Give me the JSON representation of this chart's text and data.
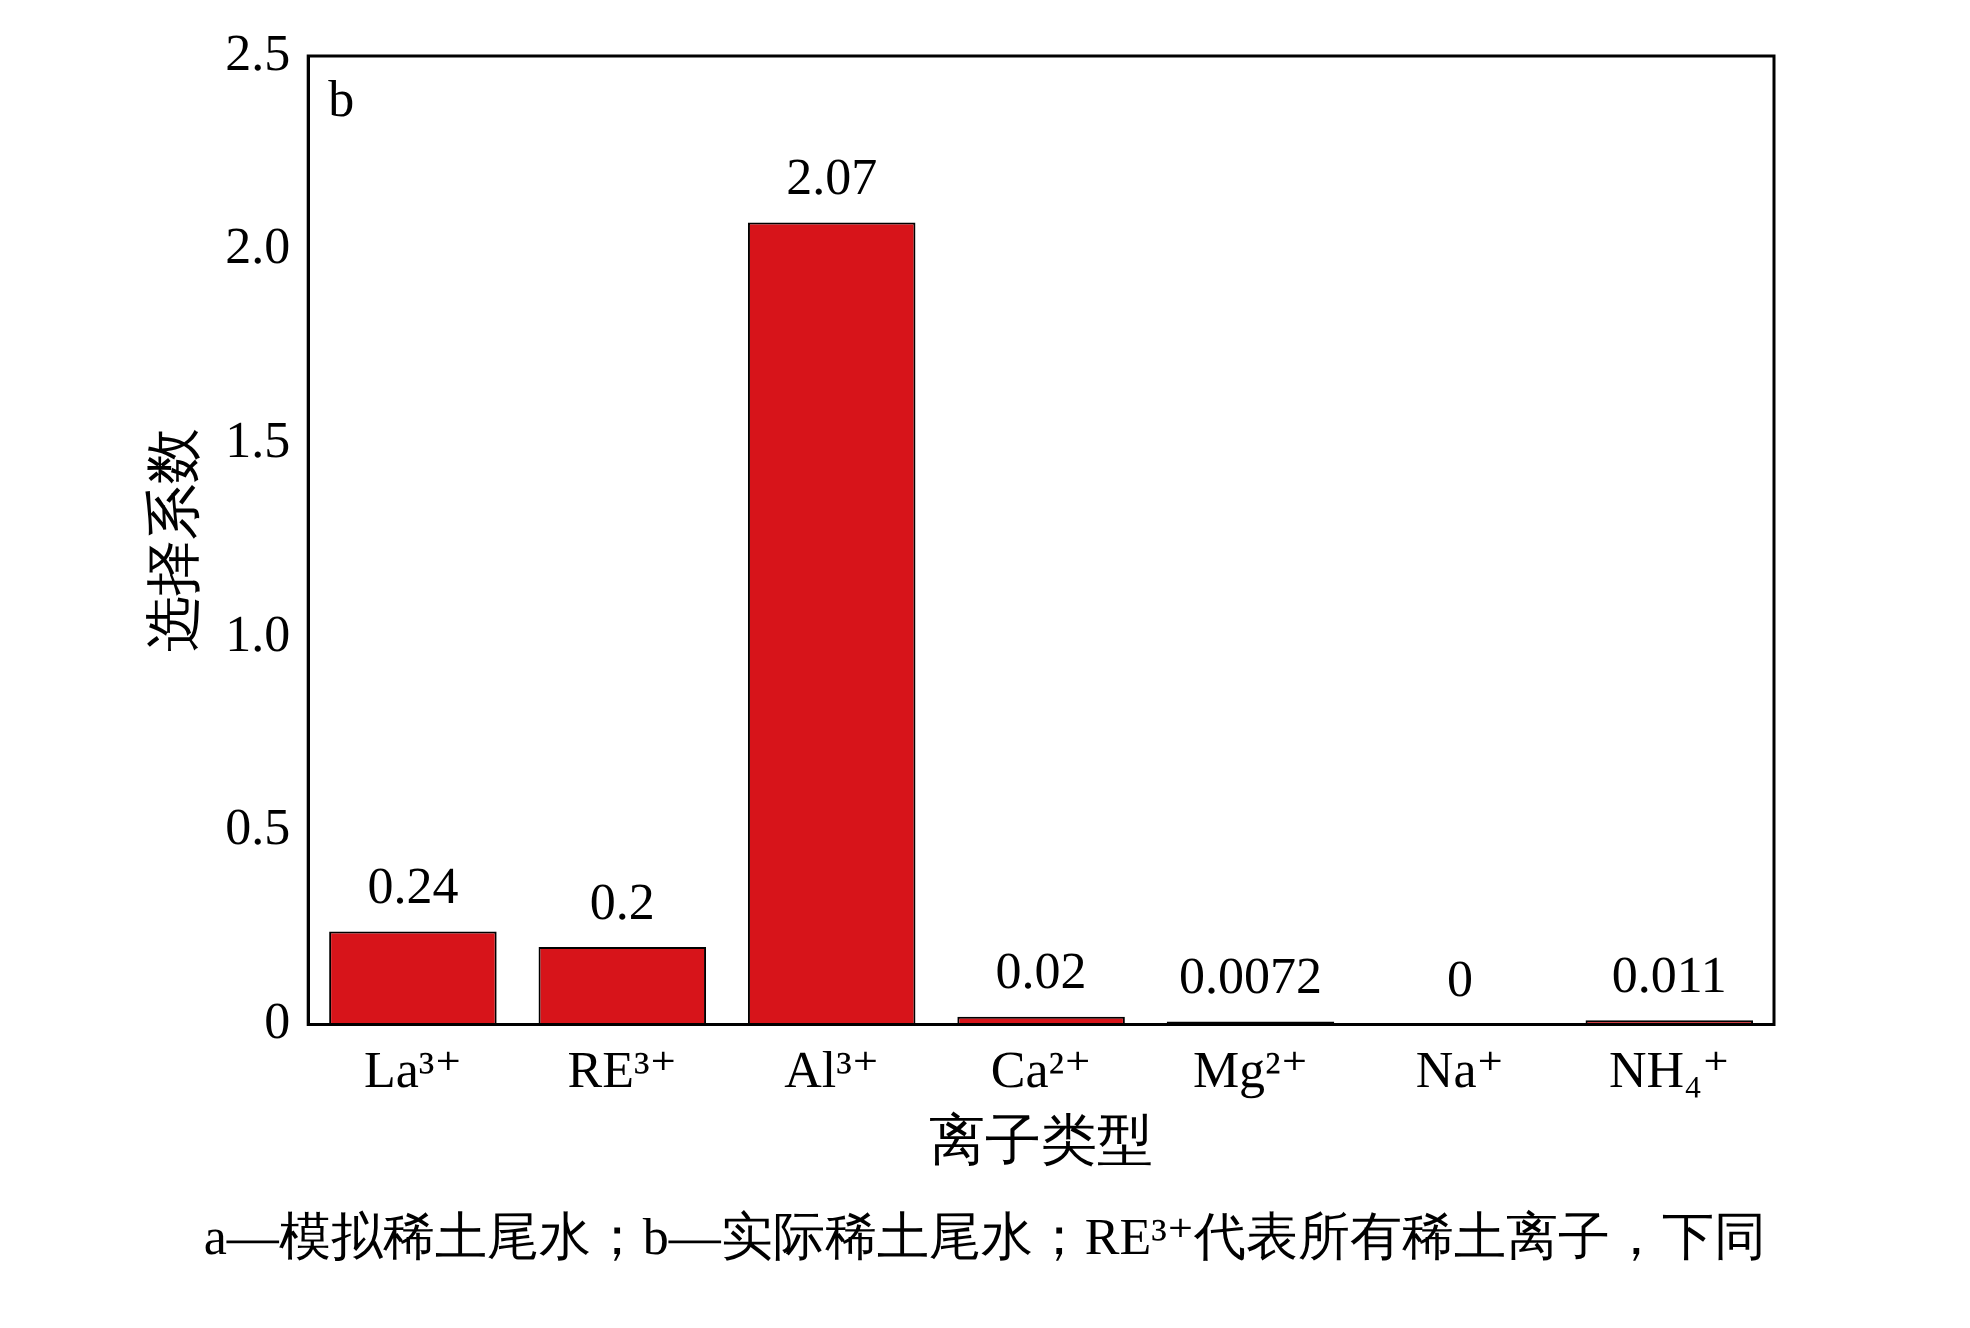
{
  "chart_data": {
    "type": "bar",
    "xlabel": "离子类型",
    "ylabel": "选择系数",
    "categories": [
      "La³⁺",
      "RE³⁺",
      "Al³⁺",
      "Ca²⁺",
      "Mg²⁺",
      "Na⁺",
      "NH₄⁺"
    ],
    "values": [
      0.24,
      0.2,
      2.07,
      0.02,
      0.0072,
      0,
      0.011
    ],
    "color": "#d7141a",
    "ylim": [
      0,
      2.5
    ],
    "yticks": [
      0,
      0.5,
      {
        "value": 1,
        "label": "1.0"
      },
      1.5,
      {
        "value": 2,
        "label": "2.0"
      },
      2.5
    ],
    "data_labels": true,
    "grid": false,
    "legend": false,
    "annotations": [
      "b",
      "a—模拟稀土尾水；b—实际稀土尾水；RE³⁺代表所有稀土离子，下同"
    ]
  }
}
